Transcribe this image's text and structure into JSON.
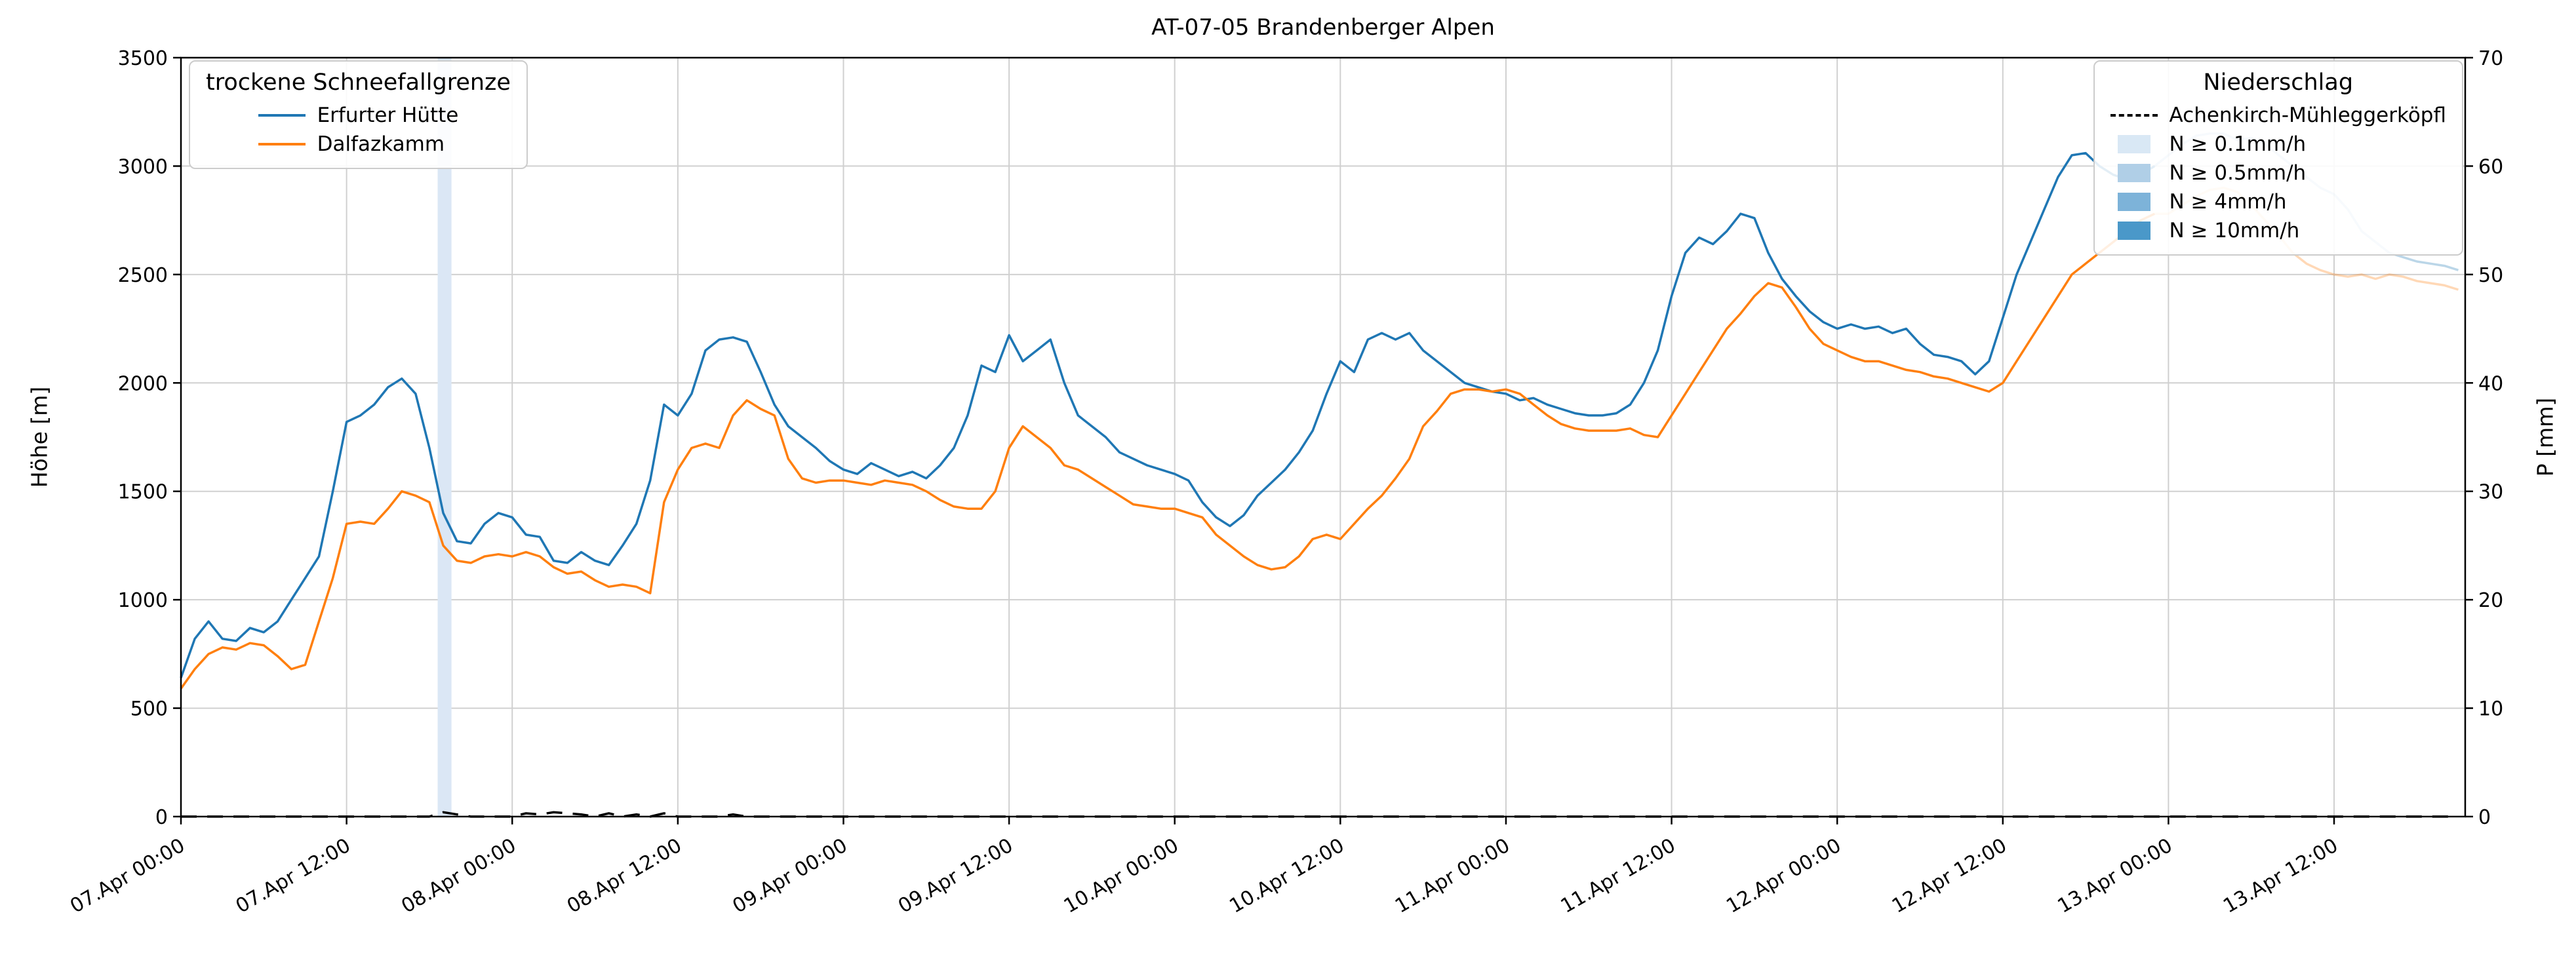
{
  "chart_data": {
    "type": "line",
    "title": "AT-07-05 Brandenberger Alpen",
    "xlabel": "",
    "grid": true,
    "x_start_label": "07.Apr 00:00",
    "x_step_hours": 1,
    "x_range_hours": [
      0,
      165.5
    ],
    "xticks": {
      "hours": [
        0,
        12,
        24,
        36,
        48,
        60,
        72,
        84,
        96,
        108,
        120,
        132,
        144,
        156
      ],
      "labels": [
        "07.Apr 00:00",
        "07.Apr 12:00",
        "08.Apr 00:00",
        "08.Apr 12:00",
        "09.Apr 00:00",
        "09.Apr 12:00",
        "10.Apr 00:00",
        "10.Apr 12:00",
        "11.Apr 00:00",
        "11.Apr 12:00",
        "12.Apr 00:00",
        "12.Apr 12:00",
        "13.Apr 00:00",
        "13.Apr 12:00"
      ]
    },
    "axes": {
      "left": {
        "label": "Höhe [m]",
        "lim": [
          0,
          3500
        ],
        "ticks": [
          0,
          500,
          1000,
          1500,
          2000,
          2500,
          3000,
          3500
        ]
      },
      "right": {
        "label": "P [mm]",
        "lim": [
          0,
          70
        ],
        "ticks": [
          0,
          10,
          20,
          30,
          40,
          50,
          60,
          70
        ]
      }
    },
    "legend_snowline": {
      "title": "trockene Schneefallgrenze",
      "entries": [
        {
          "label": "Erfurter Hütte",
          "type": "line",
          "color": "#1f77b4"
        },
        {
          "label": "Dalfazkamm",
          "type": "line",
          "color": "#ff7f0e"
        }
      ]
    },
    "legend_precip": {
      "title": "Niederschlag",
      "entries": [
        {
          "label": "Achenkirch-Mühleggerköpfl",
          "type": "dashed-line",
          "color": "#000000"
        },
        {
          "label": "N ≥ 0.1mm/h",
          "type": "fill",
          "color": "#d9e8f5"
        },
        {
          "label": "N ≥ 0.5mm/h",
          "type": "fill",
          "color": "#b0cfe7"
        },
        {
          "label": "N ≥ 4mm/h",
          "type": "fill",
          "color": "#7db3d9"
        },
        {
          "label": "N ≥ 10mm/h",
          "type": "fill",
          "color": "#4a98c9"
        }
      ]
    },
    "precip_intensity_bands": [
      {
        "from_hour": 18.6,
        "to_hour": 19.6,
        "level": "N ≥ 0.1mm/h",
        "color": "#dbe7f5"
      }
    ],
    "series": [
      {
        "name": "Erfurter Hütte",
        "color": "#1f77b4",
        "axis": "left",
        "style": "solid",
        "faded_from_index": 143,
        "values": [
          640,
          820,
          900,
          820,
          810,
          870,
          850,
          900,
          1000,
          1100,
          1200,
          1500,
          1820,
          1850,
          1900,
          1980,
          2020,
          1950,
          1700,
          1400,
          1270,
          1260,
          1350,
          1400,
          1380,
          1300,
          1290,
          1180,
          1170,
          1220,
          1180,
          1160,
          1250,
          1350,
          1550,
          1900,
          1850,
          1950,
          2150,
          2200,
          2210,
          2190,
          2050,
          1900,
          1800,
          1750,
          1700,
          1640,
          1600,
          1580,
          1630,
          1600,
          1570,
          1590,
          1560,
          1620,
          1700,
          1850,
          2080,
          2050,
          2220,
          2100,
          2150,
          2200,
          2000,
          1850,
          1800,
          1750,
          1680,
          1650,
          1620,
          1600,
          1580,
          1550,
          1450,
          1380,
          1340,
          1390,
          1480,
          1540,
          1600,
          1680,
          1780,
          1950,
          2100,
          2050,
          2200,
          2230,
          2200,
          2230,
          2150,
          2100,
          2050,
          2000,
          1980,
          1960,
          1950,
          1920,
          1930,
          1900,
          1880,
          1860,
          1850,
          1850,
          1860,
          1900,
          2000,
          2150,
          2400,
          2600,
          2670,
          2640,
          2700,
          2780,
          2760,
          2600,
          2480,
          2400,
          2330,
          2280,
          2250,
          2270,
          2250,
          2260,
          2230,
          2250,
          2180,
          2130,
          2120,
          2100,
          2040,
          2100,
          2300,
          2500,
          2650,
          2800,
          2950,
          3050,
          3060,
          3000,
          2960,
          2940,
          2960,
          3000,
          3050,
          3100,
          3140,
          3150,
          3150,
          3120,
          3130,
          3100,
          3050,
          3000,
          2950,
          2900,
          2870,
          2800,
          2700,
          2650,
          2600,
          2580,
          2560,
          2550,
          2540,
          2520
        ]
      },
      {
        "name": "Dalfazkamm",
        "color": "#ff7f0e",
        "axis": "left",
        "style": "solid",
        "faded_from_index": 143,
        "values": [
          590,
          680,
          750,
          780,
          770,
          800,
          790,
          740,
          680,
          700,
          900,
          1100,
          1350,
          1360,
          1350,
          1420,
          1500,
          1480,
          1450,
          1250,
          1180,
          1170,
          1200,
          1210,
          1200,
          1220,
          1200,
          1150,
          1120,
          1130,
          1090,
          1060,
          1070,
          1060,
          1030,
          1450,
          1600,
          1700,
          1720,
          1700,
          1850,
          1920,
          1880,
          1850,
          1650,
          1560,
          1540,
          1550,
          1550,
          1540,
          1530,
          1550,
          1540,
          1530,
          1500,
          1460,
          1430,
          1420,
          1420,
          1500,
          1700,
          1800,
          1750,
          1700,
          1620,
          1600,
          1560,
          1520,
          1480,
          1440,
          1430,
          1420,
          1420,
          1400,
          1380,
          1300,
          1250,
          1200,
          1160,
          1140,
          1150,
          1200,
          1280,
          1300,
          1280,
          1350,
          1420,
          1480,
          1560,
          1650,
          1800,
          1870,
          1950,
          1970,
          1970,
          1960,
          1970,
          1950,
          1900,
          1850,
          1810,
          1790,
          1780,
          1780,
          1780,
          1790,
          1760,
          1750,
          1850,
          1950,
          2050,
          2150,
          2250,
          2320,
          2400,
          2460,
          2440,
          2350,
          2250,
          2180,
          2150,
          2120,
          2100,
          2100,
          2080,
          2060,
          2050,
          2030,
          2020,
          2000,
          1980,
          1960,
          2000,
          2100,
          2200,
          2300,
          2400,
          2500,
          2550,
          2600,
          2650,
          2700,
          2750,
          2780,
          2780,
          2820,
          2860,
          2890,
          2900,
          2880,
          2820,
          2750,
          2680,
          2600,
          2550,
          2520,
          2500,
          2490,
          2500,
          2480,
          2500,
          2490,
          2470,
          2460,
          2450,
          2430
        ]
      },
      {
        "name": "Achenkirch-Mühleggerköpfl",
        "color": "#000000",
        "axis": "right",
        "style": "dashed",
        "length": 166,
        "default_value": 0,
        "values_sparse": {
          "19": 0.4,
          "20": 0.2,
          "25": 0.3,
          "26": 0.2,
          "27": 0.4,
          "28": 0.3,
          "29": 0.2,
          "31": 0.3,
          "33": 0.2,
          "35": 0.3,
          "40": 0.2
        }
      }
    ],
    "style_hints": {
      "faded_opacity": 0.3,
      "grid_color": "#d0d0d0",
      "frame_color": "#000000"
    }
  }
}
